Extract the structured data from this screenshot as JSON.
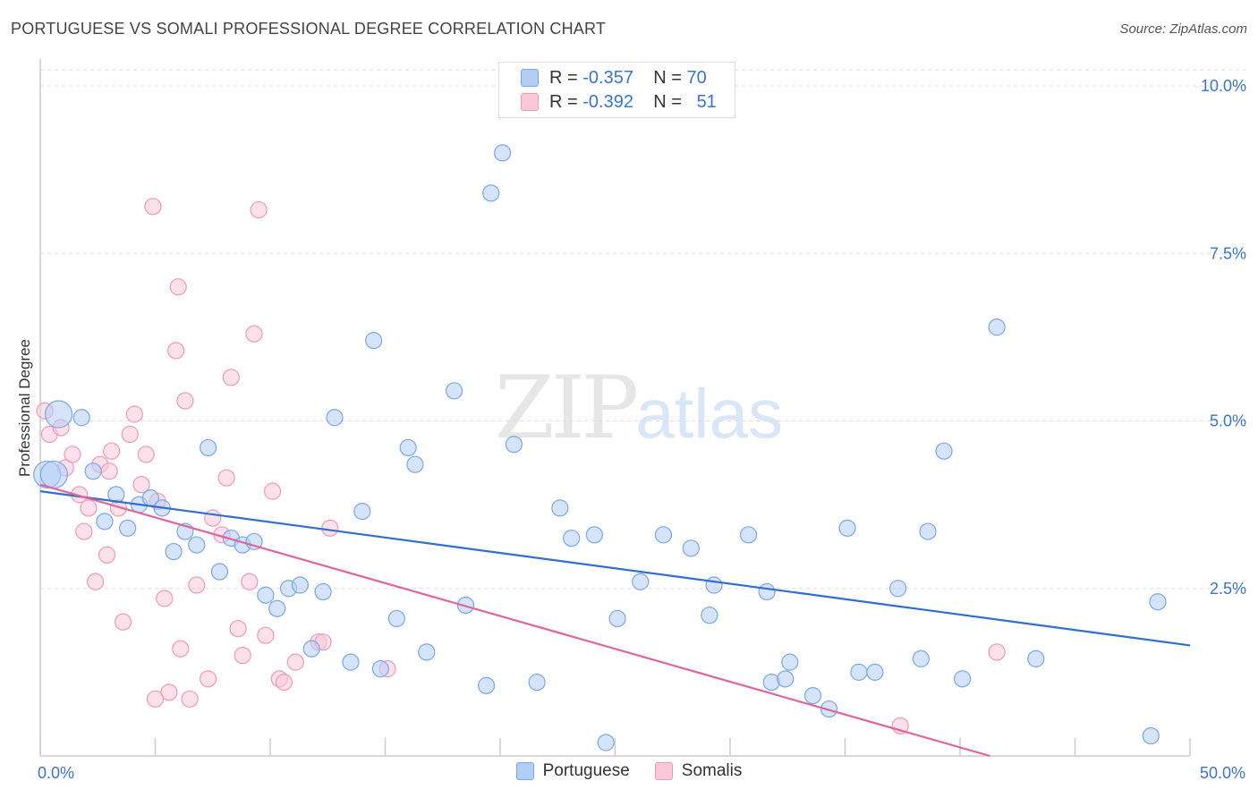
{
  "title": "PORTUGUESE VS SOMALI PROFESSIONAL DEGREE CORRELATION CHART",
  "source": "Source: ZipAtlas.com",
  "watermark": {
    "zip": "ZIP",
    "atlas": "atlas"
  },
  "legend": [
    {
      "r_label": "R =",
      "r_value": "-0.357",
      "n_label": "N =",
      "n_value": "70"
    },
    {
      "r_label": "R =",
      "r_value": "-0.392",
      "n_label": "N =",
      "n_value": "51"
    }
  ],
  "colors": {
    "blue_fill": "#b3cef5",
    "blue_stroke": "#7aa7e6",
    "blue_line": "#2f6fd1",
    "pink_fill": "#fbc8d8",
    "pink_stroke": "#ef9ab6",
    "pink_line": "#e0659a",
    "tick_label": "#3b74c8",
    "grid": "#dddddd"
  },
  "chart_data": {
    "type": "scatter",
    "title": "PORTUGUESE VS SOMALI PROFESSIONAL DEGREE CORRELATION CHART",
    "xlabel": "",
    "ylabel": "Professional Degree",
    "xlim": [
      0,
      50
    ],
    "ylim": [
      0,
      10.5
    ],
    "x_tick_labels": [
      {
        "value": 0,
        "label": "0.0%"
      },
      {
        "value": 50,
        "label": "50.0%"
      }
    ],
    "y_tick_labels": [
      {
        "value": 2.5,
        "label": "2.5%"
      },
      {
        "value": 5.0,
        "label": "5.0%"
      },
      {
        "value": 7.5,
        "label": "7.5%"
      },
      {
        "value": 10.0,
        "label": "10.0%"
      }
    ],
    "legend_position": "bottom-center",
    "grid": true,
    "series": [
      {
        "name": "Portuguese",
        "trend": {
          "x": [
            0,
            50
          ],
          "y": [
            3.95,
            1.65
          ]
        },
        "points": [
          [
            0.3,
            4.2
          ],
          [
            0.8,
            5.1
          ],
          [
            1.8,
            5.05
          ],
          [
            2.3,
            4.25
          ],
          [
            2.8,
            3.5
          ],
          [
            3.3,
            3.9
          ],
          [
            3.8,
            3.4
          ],
          [
            4.3,
            3.75
          ],
          [
            4.8,
            3.85
          ],
          [
            5.3,
            3.7
          ],
          [
            5.8,
            3.05
          ],
          [
            6.3,
            3.35
          ],
          [
            6.8,
            3.15
          ],
          [
            7.3,
            4.6
          ],
          [
            7.8,
            2.75
          ],
          [
            8.3,
            3.25
          ],
          [
            8.8,
            3.15
          ],
          [
            9.3,
            3.2
          ],
          [
            9.8,
            2.4
          ],
          [
            10.3,
            2.2
          ],
          [
            10.8,
            2.5
          ],
          [
            11.3,
            2.55
          ],
          [
            11.8,
            1.6
          ],
          [
            12.3,
            2.45
          ],
          [
            12.8,
            5.05
          ],
          [
            13.5,
            1.4
          ],
          [
            14.0,
            3.65
          ],
          [
            14.5,
            6.2
          ],
          [
            14.8,
            1.3
          ],
          [
            15.5,
            2.05
          ],
          [
            16.0,
            4.6
          ],
          [
            16.3,
            4.35
          ],
          [
            16.8,
            1.55
          ],
          [
            18.5,
            2.25
          ],
          [
            18.0,
            5.45
          ],
          [
            19.4,
            1.05
          ],
          [
            19.6,
            8.4
          ],
          [
            20.1,
            9.0
          ],
          [
            20.6,
            4.65
          ],
          [
            21.6,
            1.1
          ],
          [
            22.6,
            3.7
          ],
          [
            23.1,
            3.25
          ],
          [
            24.1,
            3.3
          ],
          [
            24.6,
            0.2
          ],
          [
            25.1,
            2.05
          ],
          [
            26.1,
            2.6
          ],
          [
            27.1,
            3.3
          ],
          [
            28.3,
            3.1
          ],
          [
            29.1,
            2.1
          ],
          [
            29.3,
            2.55
          ],
          [
            30.8,
            3.3
          ],
          [
            31.6,
            2.45
          ],
          [
            31.8,
            1.1
          ],
          [
            32.4,
            1.15
          ],
          [
            32.6,
            1.4
          ],
          [
            33.6,
            0.9
          ],
          [
            34.3,
            0.7
          ],
          [
            35.1,
            3.4
          ],
          [
            35.6,
            1.25
          ],
          [
            36.3,
            1.25
          ],
          [
            37.3,
            2.5
          ],
          [
            38.3,
            1.45
          ],
          [
            38.6,
            3.35
          ],
          [
            39.3,
            4.55
          ],
          [
            40.1,
            1.15
          ],
          [
            41.6,
            6.4
          ],
          [
            43.3,
            1.45
          ],
          [
            48.3,
            0.3
          ],
          [
            48.6,
            2.3
          ],
          [
            0.6,
            4.2
          ]
        ]
      },
      {
        "name": "Somalis",
        "trend": {
          "x": [
            0,
            41.3
          ],
          "y": [
            4.05,
            0.0
          ]
        },
        "points": [
          [
            0.2,
            5.15
          ],
          [
            0.4,
            4.8
          ],
          [
            0.9,
            4.9
          ],
          [
            1.1,
            4.3
          ],
          [
            1.4,
            4.5
          ],
          [
            1.7,
            3.9
          ],
          [
            1.9,
            3.35
          ],
          [
            2.1,
            3.7
          ],
          [
            2.4,
            2.6
          ],
          [
            2.6,
            4.35
          ],
          [
            2.9,
            3.0
          ],
          [
            3.1,
            4.55
          ],
          [
            3.4,
            3.7
          ],
          [
            3.6,
            2.0
          ],
          [
            3.9,
            4.8
          ],
          [
            4.1,
            5.1
          ],
          [
            4.4,
            4.05
          ],
          [
            4.6,
            4.5
          ],
          [
            4.9,
            8.2
          ],
          [
            5.1,
            3.8
          ],
          [
            5.4,
            2.35
          ],
          [
            5.6,
            0.95
          ],
          [
            5.9,
            6.05
          ],
          [
            6.1,
            1.6
          ],
          [
            6.3,
            5.3
          ],
          [
            6.5,
            0.85
          ],
          [
            6.8,
            2.55
          ],
          [
            7.3,
            1.15
          ],
          [
            7.5,
            3.55
          ],
          [
            7.9,
            3.3
          ],
          [
            8.1,
            4.15
          ],
          [
            8.3,
            5.65
          ],
          [
            8.6,
            1.9
          ],
          [
            8.8,
            1.5
          ],
          [
            9.1,
            2.6
          ],
          [
            9.3,
            6.3
          ],
          [
            9.5,
            8.15
          ],
          [
            9.8,
            1.8
          ],
          [
            10.1,
            3.95
          ],
          [
            10.4,
            1.15
          ],
          [
            10.6,
            1.1
          ],
          [
            11.1,
            1.4
          ],
          [
            12.1,
            1.7
          ],
          [
            12.3,
            1.7
          ],
          [
            12.6,
            3.4
          ],
          [
            15.1,
            1.3
          ],
          [
            5.0,
            0.85
          ],
          [
            6.0,
            7.0
          ],
          [
            37.4,
            0.45
          ],
          [
            41.6,
            1.55
          ],
          [
            3.0,
            4.25
          ]
        ]
      }
    ]
  },
  "axis": {
    "ylabel": "Professional Degree"
  }
}
